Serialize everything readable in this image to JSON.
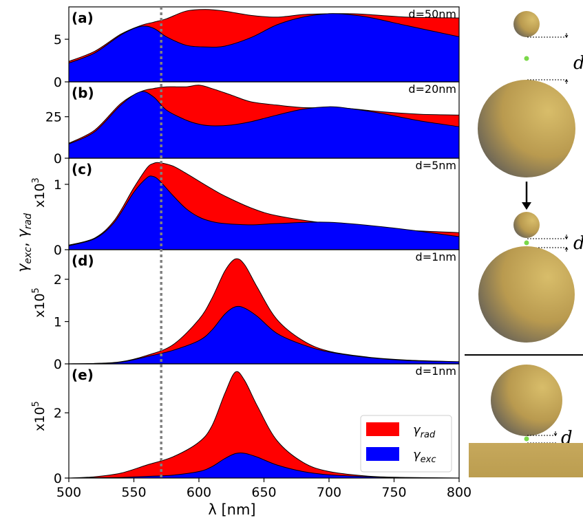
{
  "figure": {
    "ylabel": "γexc, γrad",
    "xlabel": "λ [nm]",
    "legend": [
      {
        "label": "γrad",
        "color": "#ff0000"
      },
      {
        "label": "γexc",
        "color": "#0000ff"
      }
    ],
    "marker_wavelength": 571,
    "marker_color": "#808080",
    "diagram_letter": "d"
  },
  "chart_data": [
    {
      "type": "area",
      "panel": "(a)",
      "annotation": "d=50nm",
      "multiplier": "",
      "xlim": [
        500,
        800
      ],
      "ylim": [
        0,
        8.8
      ],
      "yticks": [
        0,
        5
      ],
      "x": [
        500,
        520,
        540,
        555,
        565,
        575,
        590,
        605,
        620,
        640,
        660,
        680,
        700,
        715,
        730,
        760,
        800
      ],
      "series": [
        {
          "name": "γrad",
          "color": "#ff0000",
          "values": [
            2.4,
            3.6,
            5.6,
            6.6,
            7.0,
            7.4,
            8.3,
            8.5,
            8.3,
            7.8,
            7.6,
            7.9,
            8.0,
            8.0,
            7.9,
            7.6,
            7.5
          ]
        },
        {
          "name": "γexc",
          "color": "#0000ff",
          "values": [
            2.2,
            3.4,
            5.5,
            6.5,
            6.3,
            5.3,
            4.3,
            4.1,
            4.2,
            5.2,
            6.7,
            7.6,
            8.0,
            7.9,
            7.6,
            6.6,
            5.3
          ]
        }
      ]
    },
    {
      "type": "area",
      "panel": "(b)",
      "annotation": "d=20nm",
      "multiplier": "",
      "xlim": [
        500,
        800
      ],
      "ylim": [
        0,
        46
      ],
      "yticks": [
        0,
        25
      ],
      "x": [
        500,
        520,
        540,
        555,
        565,
        575,
        590,
        600,
        610,
        625,
        640,
        660,
        680,
        700,
        715,
        740,
        770,
        800
      ],
      "series": [
        {
          "name": "γrad",
          "color": "#ff0000",
          "values": [
            9,
            17,
            33,
            40,
            42,
            43,
            43,
            44,
            42,
            38,
            34,
            32,
            30.5,
            30.5,
            30,
            28,
            26.5,
            26
          ]
        },
        {
          "name": "γexc",
          "color": "#0000ff",
          "values": [
            8.5,
            16,
            32,
            40,
            37,
            29,
            23,
            20.5,
            19.5,
            20,
            22,
            26,
            29.5,
            31,
            30,
            27,
            22.5,
            19
          ]
        }
      ]
    },
    {
      "type": "area",
      "panel": "(c)",
      "annotation": "d=5nm",
      "multiplier": "x10^3",
      "xlim": [
        500,
        800
      ],
      "ylim": [
        0,
        1.4
      ],
      "yticks": [
        0,
        1
      ],
      "x": [
        500,
        520,
        535,
        550,
        560,
        565,
        570,
        580,
        590,
        600,
        610,
        620,
        640,
        660,
        700,
        750,
        800
      ],
      "series": [
        {
          "name": "γrad",
          "color": "#ff0000",
          "values": [
            0.07,
            0.18,
            0.45,
            0.95,
            1.25,
            1.32,
            1.33,
            1.28,
            1.17,
            1.05,
            0.93,
            0.82,
            0.64,
            0.52,
            0.4,
            0.31,
            0.26
          ]
        },
        {
          "name": "γexc",
          "color": "#0000ff",
          "values": [
            0.06,
            0.17,
            0.42,
            0.88,
            1.1,
            1.12,
            1.05,
            0.83,
            0.63,
            0.5,
            0.43,
            0.4,
            0.38,
            0.4,
            0.42,
            0.33,
            0.2
          ]
        }
      ]
    },
    {
      "type": "area",
      "panel": "(d)",
      "annotation": "d=1nm",
      "multiplier": "x10^5",
      "xlim": [
        500,
        800
      ],
      "ylim": [
        0,
        2.7
      ],
      "yticks": [
        0,
        1,
        2
      ],
      "x": [
        500,
        520,
        540,
        560,
        580,
        600,
        610,
        620,
        628,
        635,
        645,
        660,
        680,
        700,
        730,
        760,
        800
      ],
      "series": [
        {
          "name": "γrad",
          "color": "#ff0000",
          "values": [
            0,
            0.01,
            0.05,
            0.2,
            0.45,
            1.05,
            1.55,
            2.2,
            2.48,
            2.35,
            1.8,
            1.05,
            0.55,
            0.3,
            0.16,
            0.09,
            0.05
          ]
        },
        {
          "name": "γexc",
          "color": "#0000ff",
          "values": [
            0,
            0.01,
            0.04,
            0.17,
            0.32,
            0.55,
            0.8,
            1.18,
            1.35,
            1.32,
            1.12,
            0.72,
            0.45,
            0.28,
            0.15,
            0.08,
            0.05
          ]
        }
      ]
    },
    {
      "type": "area",
      "panel": "(e)",
      "annotation": "d=1nm",
      "multiplier": "x10^5",
      "xlim": [
        500,
        800
      ],
      "ylim": [
        0,
        3.5
      ],
      "yticks": [
        0,
        2
      ],
      "x": [
        500,
        520,
        540,
        560,
        580,
        600,
        610,
        620,
        628,
        635,
        645,
        660,
        680,
        700,
        730,
        760,
        800
      ],
      "series": [
        {
          "name": "γrad",
          "color": "#ff0000",
          "values": [
            0,
            0.04,
            0.15,
            0.4,
            0.65,
            1.1,
            1.6,
            2.6,
            3.25,
            3.0,
            2.2,
            1.15,
            0.48,
            0.2,
            0.06,
            0.02,
            0
          ]
        },
        {
          "name": "γexc",
          "color": "#0000ff",
          "values": [
            0,
            0.01,
            0.02,
            0.05,
            0.09,
            0.2,
            0.35,
            0.6,
            0.75,
            0.76,
            0.64,
            0.4,
            0.2,
            0.1,
            0.04,
            0.01,
            0
          ]
        }
      ]
    }
  ],
  "xticks": [
    500,
    550,
    600,
    650,
    700,
    750,
    800
  ]
}
